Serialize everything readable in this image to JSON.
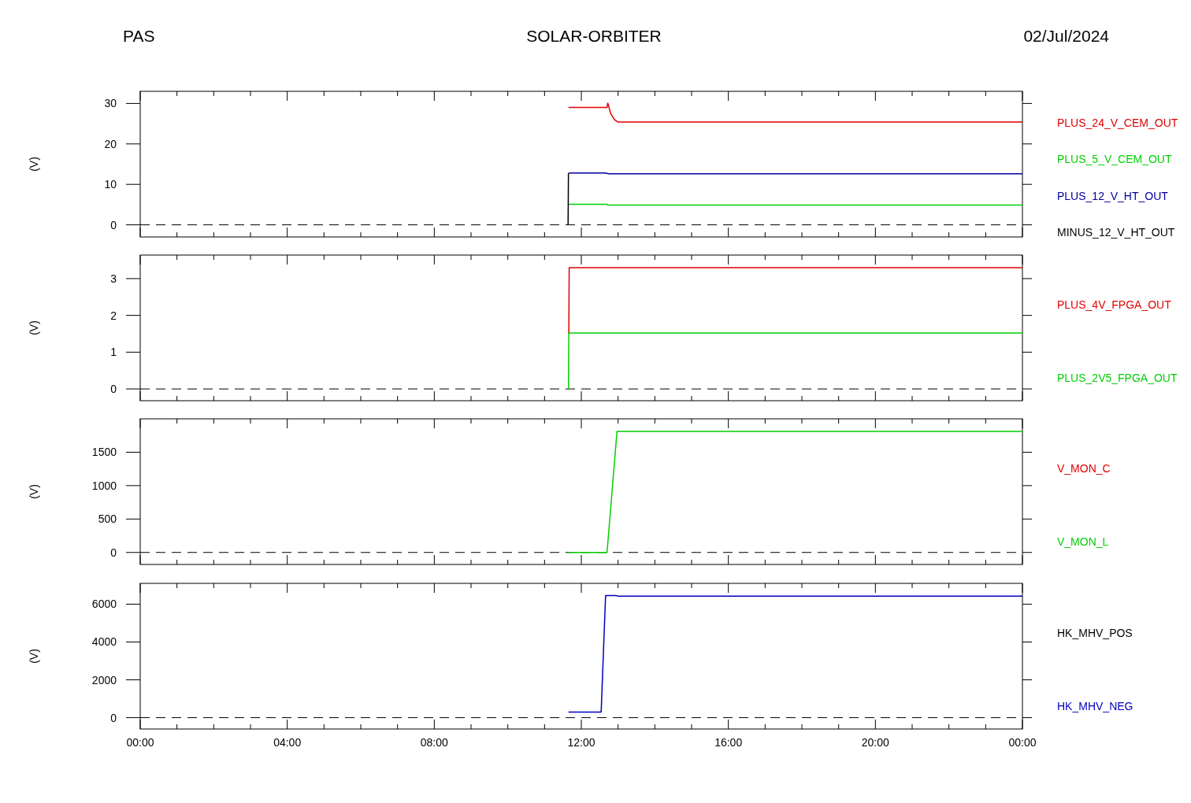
{
  "chart_data": [
    {
      "type": "line",
      "title": "SOLAR-ORBITER",
      "annotations": [
        "PAS",
        "02/Jul/2024"
      ],
      "ylabel": "(V)",
      "tick_labels": "y",
      "legend": "right",
      "xlim": [
        0,
        24
      ],
      "xticks": [
        0,
        {
          "value": 1,
          "label": null
        },
        {
          "value": 2,
          "label": null
        },
        {
          "value": 3,
          "label": null
        },
        4,
        {
          "value": 5,
          "label": null
        },
        {
          "value": 6,
          "label": null
        },
        {
          "value": 7,
          "label": null
        },
        8,
        {
          "value": 9,
          "label": null
        },
        {
          "value": 10,
          "label": null
        },
        {
          "value": 11,
          "label": null
        },
        12,
        {
          "value": 13,
          "label": null
        },
        {
          "value": 14,
          "label": null
        },
        {
          "value": 15,
          "label": null
        },
        16,
        {
          "value": 17,
          "label": null
        },
        {
          "value": 18,
          "label": null
        },
        {
          "value": 19,
          "label": null
        },
        20,
        {
          "value": 21,
          "label": null
        },
        {
          "value": 22,
          "label": null
        },
        {
          "value": 23,
          "label": null
        },
        24
      ],
      "ylim": [
        -3,
        33
      ],
      "yticks": [
        0,
        10,
        20,
        30
      ],
      "ref_lines": [
        {
          "axis": "y",
          "value": 0,
          "label": null,
          "color": "#000000",
          "line_style": "dashed"
        }
      ],
      "series": [
        {
          "name": "PLUS_24_V_CEM_OUT",
          "color": "#e00000",
          "x": [
            11.65,
            12.7,
            12.72,
            12.8,
            12.9,
            13.0,
            24
          ],
          "values": [
            29,
            29,
            30.1,
            27.5,
            26,
            25.4,
            25.4
          ]
        },
        {
          "name": "PLUS_5_V_CEM_OUT",
          "color": "#00d000",
          "x": [
            11.65,
            12.7,
            12.72,
            24
          ],
          "values": [
            5.1,
            5.1,
            4.9,
            4.9
          ]
        },
        {
          "name": "PLUS_12_V_HT_OUT",
          "color": "#0000a0",
          "x": [
            11.66,
            12.65,
            12.75,
            24
          ],
          "values": [
            12.8,
            12.8,
            12.6,
            12.6
          ]
        },
        {
          "name": "MINUS_12_V_HT_OUT",
          "color": "#000000",
          "x": [
            11.64,
            11.65
          ],
          "values": [
            0,
            12.8
          ]
        }
      ]
    },
    {
      "type": "line",
      "ylabel": "(V)",
      "tick_labels": "y",
      "legend": "right",
      "xlim": [
        0,
        24
      ],
      "xticks": [
        0,
        {
          "value": 1,
          "label": null
        },
        {
          "value": 2,
          "label": null
        },
        {
          "value": 3,
          "label": null
        },
        4,
        {
          "value": 5,
          "label": null
        },
        {
          "value": 6,
          "label": null
        },
        {
          "value": 7,
          "label": null
        },
        8,
        {
          "value": 9,
          "label": null
        },
        {
          "value": 10,
          "label": null
        },
        {
          "value": 11,
          "label": null
        },
        12,
        {
          "value": 13,
          "label": null
        },
        {
          "value": 14,
          "label": null
        },
        {
          "value": 15,
          "label": null
        },
        16,
        {
          "value": 17,
          "label": null
        },
        {
          "value": 18,
          "label": null
        },
        {
          "value": 19,
          "label": null
        },
        20,
        {
          "value": 21,
          "label": null
        },
        {
          "value": 22,
          "label": null
        },
        {
          "value": 23,
          "label": null
        },
        24
      ],
      "ylim": [
        -0.32,
        3.64
      ],
      "yticks": [
        0,
        1,
        2,
        3
      ],
      "ref_lines": [
        {
          "axis": "y",
          "value": 0,
          "label": null,
          "color": "#000000",
          "line_style": "dashed"
        }
      ],
      "series": [
        {
          "name": "PLUS_4V_FPGA_OUT",
          "color": "#e00000",
          "x": [
            11.66,
            11.67,
            24
          ],
          "values": [
            1.5,
            3.3,
            3.3
          ]
        },
        {
          "name": "PLUS_2V5_FPGA_OUT",
          "color": "#00d000",
          "x": [
            11.65,
            11.66,
            24
          ],
          "values": [
            0,
            1.52,
            1.52
          ]
        }
      ]
    },
    {
      "type": "line",
      "ylabel": "(V)",
      "tick_labels": "y",
      "legend": "right",
      "xlim": [
        0,
        24
      ],
      "xticks": [
        0,
        {
          "value": 1,
          "label": null
        },
        {
          "value": 2,
          "label": null
        },
        {
          "value": 3,
          "label": null
        },
        4,
        {
          "value": 5,
          "label": null
        },
        {
          "value": 6,
          "label": null
        },
        {
          "value": 7,
          "label": null
        },
        8,
        {
          "value": 9,
          "label": null
        },
        {
          "value": 10,
          "label": null
        },
        {
          "value": 11,
          "label": null
        },
        12,
        {
          "value": 13,
          "label": null
        },
        {
          "value": 14,
          "label": null
        },
        {
          "value": 15,
          "label": null
        },
        16,
        {
          "value": 17,
          "label": null
        },
        {
          "value": 18,
          "label": null
        },
        {
          "value": 19,
          "label": null
        },
        20,
        {
          "value": 21,
          "label": null
        },
        {
          "value": 22,
          "label": null
        },
        {
          "value": 23,
          "label": null
        },
        24
      ],
      "ylim": [
        -180,
        2000
      ],
      "yticks": [
        0,
        500,
        1000,
        1500
      ],
      "ref_lines": [
        {
          "axis": "y",
          "value": 0,
          "label": null,
          "color": "#000000",
          "line_style": "dashed"
        }
      ],
      "series": [
        {
          "name": "V_MON_C",
          "color": "#e00000"
        },
        {
          "name": "V_MON_L",
          "color": "#00d000",
          "x": [
            11.65,
            12.7,
            12.97,
            24
          ],
          "values": [
            0,
            0,
            1810,
            1810
          ]
        }
      ]
    },
    {
      "type": "line",
      "ylabel": "(V)",
      "legend": "right",
      "xlim": [
        0,
        24
      ],
      "xticks": [
        {
          "value": 0,
          "label": "00:00"
        },
        {
          "value": 1,
          "label": null
        },
        {
          "value": 2,
          "label": null
        },
        {
          "value": 3,
          "label": null
        },
        {
          "value": 4,
          "label": "04:00"
        },
        {
          "value": 5,
          "label": null
        },
        {
          "value": 6,
          "label": null
        },
        {
          "value": 7,
          "label": null
        },
        {
          "value": 8,
          "label": "08:00"
        },
        {
          "value": 9,
          "label": null
        },
        {
          "value": 10,
          "label": null
        },
        {
          "value": 11,
          "label": null
        },
        {
          "value": 12,
          "label": "12:00"
        },
        {
          "value": 13,
          "label": null
        },
        {
          "value": 14,
          "label": null
        },
        {
          "value": 15,
          "label": null
        },
        {
          "value": 16,
          "label": "16:00"
        },
        {
          "value": 17,
          "label": null
        },
        {
          "value": 18,
          "label": null
        },
        {
          "value": 19,
          "label": null
        },
        {
          "value": 20,
          "label": "20:00"
        },
        {
          "value": 21,
          "label": null
        },
        {
          "value": 22,
          "label": null
        },
        {
          "value": 23,
          "label": null
        },
        {
          "value": 24,
          "label": "00:00"
        }
      ],
      "ylim": [
        -600,
        7100
      ],
      "yticks": [
        0,
        2000,
        4000,
        6000
      ],
      "ref_lines": [
        {
          "axis": "y",
          "value": 0,
          "label": null,
          "color": "#000000",
          "line_style": "dashed"
        }
      ],
      "series": [
        {
          "name": "HK_MHV_POS",
          "color": "#000000"
        },
        {
          "name": "HK_MHV_NEG",
          "color": "#0000c0",
          "x": [
            11.65,
            12.54,
            12.66,
            12.95,
            13.0,
            24
          ],
          "values": [
            300,
            300,
            6450,
            6450,
            6420,
            6420
          ]
        }
      ]
    }
  ]
}
